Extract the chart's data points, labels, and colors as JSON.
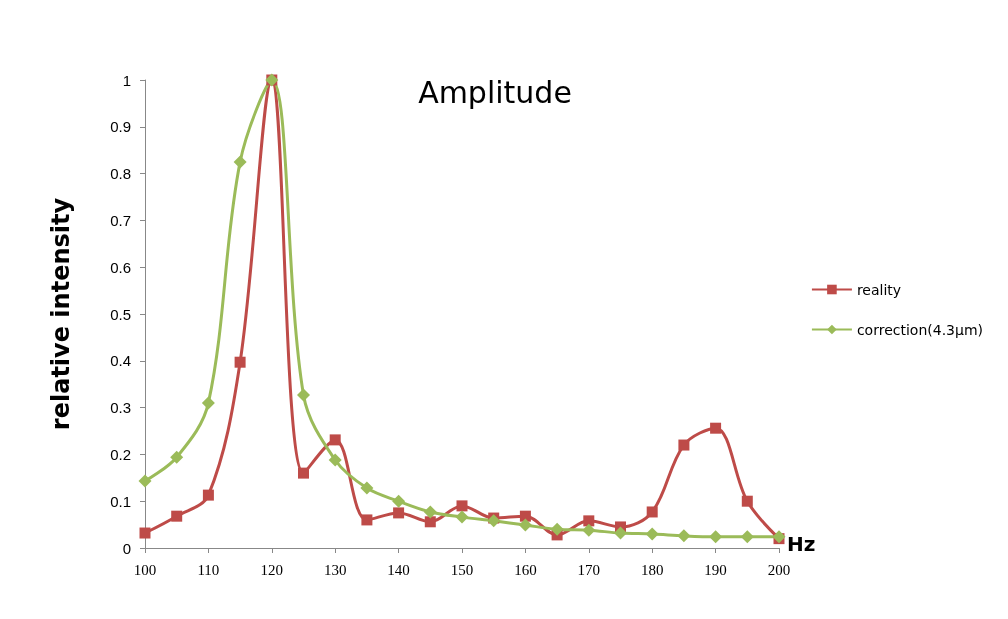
{
  "chart_data": {
    "type": "line",
    "title": "Amplitude",
    "xlabel": "Hz",
    "ylabel": "relative intensity",
    "x": [
      100,
      105,
      110,
      115,
      120,
      125,
      130,
      135,
      140,
      145,
      150,
      155,
      160,
      165,
      170,
      175,
      180,
      185,
      190,
      195,
      200
    ],
    "series": [
      {
        "name": "reality",
        "color": "#be4b48",
        "marker": "square",
        "values": [
          0.032,
          0.068,
          0.113,
          0.397,
          1.0,
          0.16,
          0.231,
          0.06,
          0.075,
          0.056,
          0.09,
          0.064,
          0.068,
          0.028,
          0.058,
          0.045,
          0.077,
          0.22,
          0.256,
          0.1,
          0.02
        ]
      },
      {
        "name": "correction(4.3μm)",
        "color": "#9bbb59",
        "marker": "diamond",
        "values": [
          0.143,
          0.194,
          0.31,
          0.825,
          1.0,
          0.327,
          0.188,
          0.128,
          0.1,
          0.077,
          0.066,
          0.058,
          0.049,
          0.04,
          0.038,
          0.032,
          0.03,
          0.026,
          0.024,
          0.024,
          0.024
        ]
      }
    ],
    "xlim": [
      100,
      200
    ],
    "xticks": [
      100,
      110,
      120,
      130,
      140,
      150,
      160,
      170,
      180,
      190,
      200
    ],
    "ylim": [
      0,
      1
    ],
    "yticks": [
      0,
      0.1,
      0.2,
      0.3,
      0.4,
      0.5,
      0.6,
      0.7,
      0.8,
      0.9,
      1
    ],
    "grid": false,
    "legend": "right",
    "line_style": "solid"
  }
}
